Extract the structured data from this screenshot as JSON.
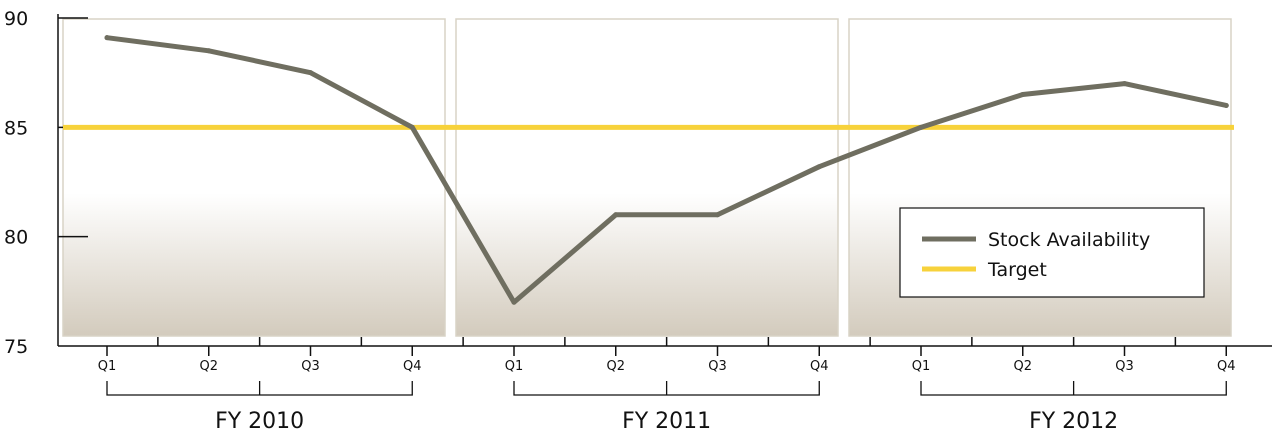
{
  "chart_data": {
    "type": "line",
    "title": "",
    "xlabel": "",
    "ylabel": "",
    "ylim": [
      75,
      90
    ],
    "yticks": [
      "75",
      "80",
      "85",
      "90"
    ],
    "categories": [
      "Q1",
      "Q2",
      "Q3",
      "Q4",
      "Q1",
      "Q2",
      "Q3",
      "Q4",
      "Q1",
      "Q2",
      "Q3",
      "Q4"
    ],
    "groups": [
      {
        "label": "FY 2010",
        "quarters": [
          "Q1",
          "Q2",
          "Q3",
          "Q4"
        ]
      },
      {
        "label": "FY 2011",
        "quarters": [
          "Q1",
          "Q2",
          "Q3",
          "Q4"
        ]
      },
      {
        "label": "FY 2012",
        "quarters": [
          "Q1",
          "Q2",
          "Q3",
          "Q4"
        ]
      }
    ],
    "series": [
      {
        "name": "Stock Availability",
        "color": "#6f6e60",
        "values": [
          89.1,
          88.5,
          87.5,
          85.0,
          77.0,
          81.0,
          81.0,
          83.2,
          85.0,
          86.5,
          87.0,
          86.0
        ]
      },
      {
        "name": "Target",
        "color": "#f7d23b",
        "values": [
          85,
          85,
          85,
          85,
          85,
          85,
          85,
          85,
          85,
          85,
          85,
          85
        ]
      }
    ],
    "legend": {
      "placement": "bottom-right"
    },
    "grid": false
  }
}
